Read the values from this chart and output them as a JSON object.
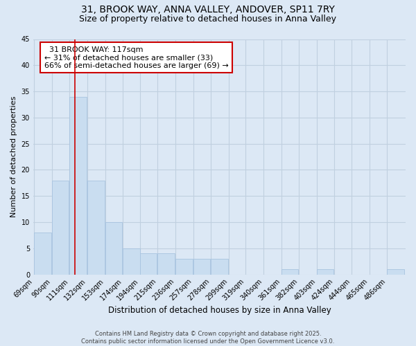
{
  "title_line1": "31, BROOK WAY, ANNA VALLEY, ANDOVER, SP11 7RY",
  "title_line2": "Size of property relative to detached houses in Anna Valley",
  "xlabel": "Distribution of detached houses by size in Anna Valley",
  "ylabel": "Number of detached properties",
  "bins": [
    69,
    90,
    111,
    132,
    153,
    174,
    194,
    215,
    236,
    257,
    278,
    299,
    319,
    340,
    361,
    382,
    403,
    424,
    444,
    465,
    486
  ],
  "values": [
    8,
    18,
    34,
    18,
    10,
    5,
    4,
    4,
    3,
    3,
    3,
    0,
    0,
    0,
    1,
    0,
    1,
    0,
    0,
    0,
    1
  ],
  "bar_color": "#c9ddf0",
  "bar_edge_color": "#a8c4e0",
  "red_line_x": 117,
  "annotation_title": "31 BROOK WAY: 117sqm",
  "annotation_line2": "← 31% of detached houses are smaller (33)",
  "annotation_line3": "66% of semi-detached houses are larger (69) →",
  "annotation_box_color": "#ffffff",
  "annotation_border_color": "#cc0000",
  "red_line_color": "#cc0000",
  "grid_color": "#c0d0e0",
  "background_color": "#dce8f5",
  "ylim": [
    0,
    45
  ],
  "yticks": [
    0,
    5,
    10,
    15,
    20,
    25,
    30,
    35,
    40,
    45
  ],
  "footer_line1": "Contains HM Land Registry data © Crown copyright and database right 2025.",
  "footer_line2": "Contains public sector information licensed under the Open Government Licence v3.0.",
  "title_fontsize": 10,
  "subtitle_fontsize": 9,
  "tick_fontsize": 7,
  "ylabel_fontsize": 8,
  "xlabel_fontsize": 8.5,
  "footer_fontsize": 6,
  "annotation_fontsize": 8
}
